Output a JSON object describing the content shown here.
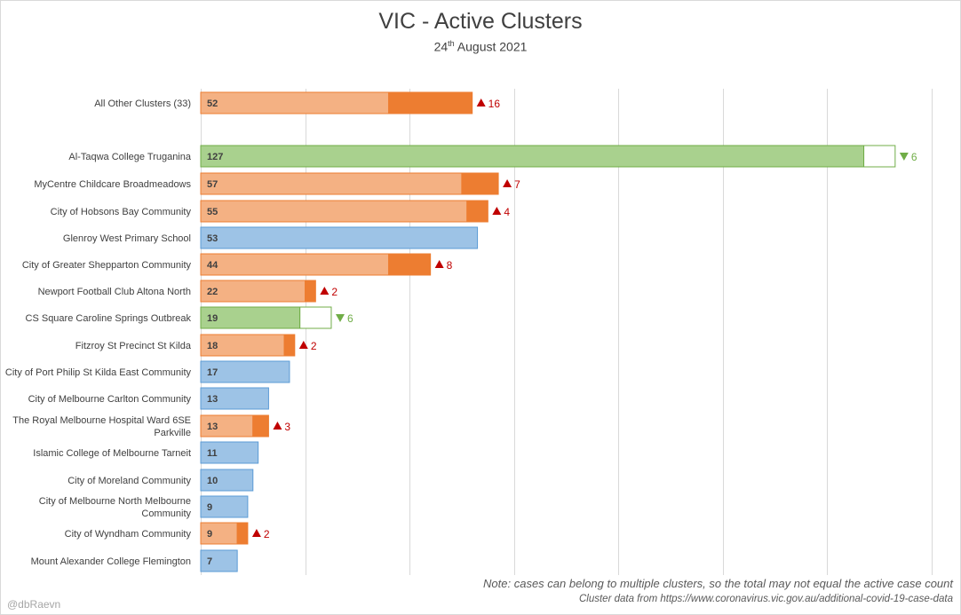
{
  "title": "VIC - Active Clusters",
  "subtitle": {
    "prefix": "24",
    "sup": "th",
    "rest": " August 2021"
  },
  "note": "Note: cases can belong to multiple clusters, so the total may not equal the active case count",
  "source": "Cluster data from https://www.coronavirus.vic.gov.au/additional-covid-19-case-data",
  "credit": "@dbRaevn",
  "colors": {
    "up_fill_light": "#F4B183",
    "up_fill_dark": "#ED7D31",
    "up_text": "#C00000",
    "down_fill": "#A9D18E",
    "down_border": "#70AD47",
    "down_text": "#70AD47",
    "same_fill": "#9DC3E6",
    "same_border": "#5B9BD5",
    "grid": "#d9d9d9"
  },
  "chart_data": {
    "type": "bar",
    "orientation": "horizontal",
    "stacked": true,
    "title": "VIC - Active Clusters",
    "subtitle": "24th August 2021",
    "xlim": [
      0,
      140
    ],
    "x_gridlines": [
      0,
      20,
      40,
      60,
      80,
      100,
      120,
      140
    ],
    "grid": true,
    "rows": [
      {
        "label": [
          "All Other Clusters (33)"
        ],
        "value": 52,
        "change": 16,
        "status": "up"
      },
      {
        "label": [
          "Al-Taqwa College Truganina"
        ],
        "value": 127,
        "change": 6,
        "status": "down"
      },
      {
        "label": [
          "MyCentre Childcare Broadmeadows"
        ],
        "value": 57,
        "change": 7,
        "status": "up"
      },
      {
        "label": [
          "City of Hobsons Bay Community"
        ],
        "value": 55,
        "change": 4,
        "status": "up"
      },
      {
        "label": [
          "Glenroy West Primary School"
        ],
        "value": 53,
        "change": 0,
        "status": "same"
      },
      {
        "label": [
          "City of Greater Shepparton Community"
        ],
        "value": 44,
        "change": 8,
        "status": "up"
      },
      {
        "label": [
          "Newport Football Club Altona North"
        ],
        "value": 22,
        "change": 2,
        "status": "up"
      },
      {
        "label": [
          "CS Square Caroline Springs Outbreak"
        ],
        "value": 19,
        "change": 6,
        "status": "down"
      },
      {
        "label": [
          "Fitzroy St Precinct St Kilda"
        ],
        "value": 18,
        "change": 2,
        "status": "up"
      },
      {
        "label": [
          "City of Port Philip St Kilda East Community"
        ],
        "value": 17,
        "change": 0,
        "status": "same"
      },
      {
        "label": [
          "City of Melbourne Carlton Community"
        ],
        "value": 13,
        "change": 0,
        "status": "same"
      },
      {
        "label": [
          "The Royal Melbourne Hospital Ward 6SE",
          "Parkville"
        ],
        "value": 13,
        "change": 3,
        "status": "up"
      },
      {
        "label": [
          "Islamic College of Melbourne Tarneit"
        ],
        "value": 11,
        "change": 0,
        "status": "same"
      },
      {
        "label": [
          "City of Moreland Community"
        ],
        "value": 10,
        "change": 0,
        "status": "same"
      },
      {
        "label": [
          "City of Melbourne North Melbourne",
          "Community"
        ],
        "value": 9,
        "change": 0,
        "status": "same"
      },
      {
        "label": [
          "City of Wyndham Community"
        ],
        "value": 9,
        "change": 2,
        "status": "up"
      },
      {
        "label": [
          "Mount Alexander College Flemington"
        ],
        "value": 7,
        "change": 0,
        "status": "same"
      }
    ]
  }
}
